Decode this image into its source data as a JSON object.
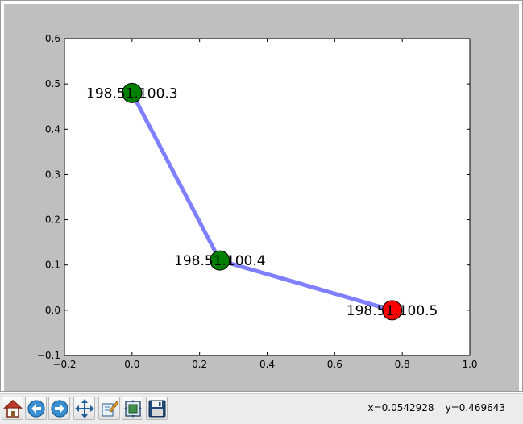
{
  "window": {
    "toolbar": {
      "buttons": [
        {
          "name": "home-button",
          "icon": "home-icon"
        },
        {
          "name": "back-button",
          "icon": "arrow-left-icon"
        },
        {
          "name": "forward-button",
          "icon": "arrow-right-icon"
        },
        {
          "name": "pan-button",
          "icon": "move-arrows-icon"
        },
        {
          "name": "zoom-button",
          "icon": "zoom-rect-icon"
        },
        {
          "name": "subplots-button",
          "icon": "subplots-config-icon"
        },
        {
          "name": "save-button",
          "icon": "floppy-disk-icon"
        }
      ],
      "coords": {
        "x": "x=0.0542928",
        "y": "y=0.469643"
      }
    },
    "colors": {
      "figure_bg": "#bfbfbf",
      "axes_bg": "#ffffff",
      "edge": "#7f7fff",
      "node_green": "#008000",
      "node_red": "#ff0000"
    }
  },
  "chart_data": {
    "type": "scatter",
    "title": "",
    "xlabel": "",
    "ylabel": "",
    "xlim": [
      -0.2,
      1.0
    ],
    "ylim": [
      -0.1,
      0.6
    ],
    "xticks": [
      -0.2,
      0.0,
      0.2,
      0.4,
      0.6,
      0.8,
      1.0
    ],
    "yticks": [
      -0.1,
      0.0,
      0.1,
      0.2,
      0.3,
      0.4,
      0.5,
      0.6
    ],
    "xtick_labels": [
      "−0.2",
      "0.0",
      "0.2",
      "0.4",
      "0.6",
      "0.8",
      "1.0"
    ],
    "ytick_labels": [
      "−0.1",
      "0.0",
      "0.1",
      "0.2",
      "0.3",
      "0.4",
      "0.5",
      "0.6"
    ],
    "grid": false,
    "nodes": [
      {
        "label": "198.51.100.3",
        "x": 0.0,
        "y": 0.48,
        "color": "#008000"
      },
      {
        "label": "198.51.100.4",
        "x": 0.26,
        "y": 0.11,
        "color": "#008000"
      },
      {
        "label": "198.51.100.5",
        "x": 0.77,
        "y": 0.0,
        "color": "#ff0000"
      }
    ],
    "edges": [
      {
        "from": 0,
        "to": 1
      },
      {
        "from": 1,
        "to": 2
      }
    ]
  }
}
